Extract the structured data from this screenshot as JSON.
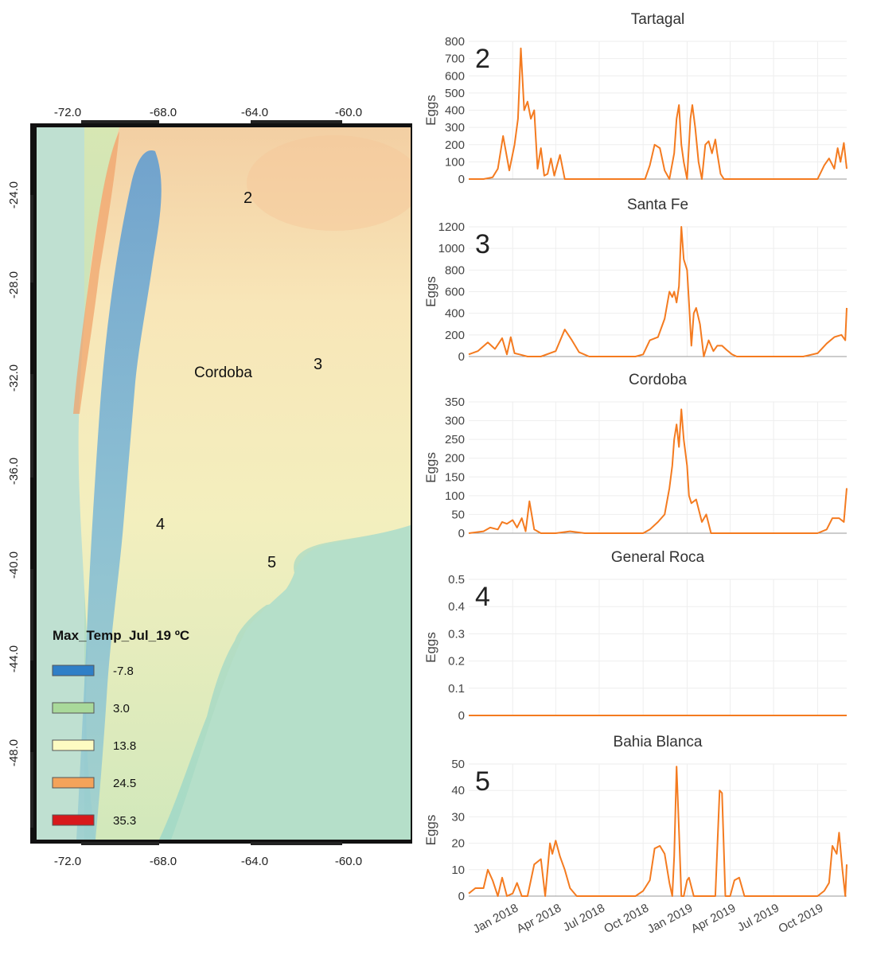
{
  "map": {
    "top_ticks": [
      "-72.0",
      "-68.0",
      "-64.0",
      "-60.0"
    ],
    "bottom_ticks": [
      "-72.0",
      "-68.0",
      "-64.0",
      "-60.0"
    ],
    "lat_ticks": [
      "-24.0",
      "-28.0",
      "-32.0",
      "-36.0",
      "-40.0",
      "-44.0",
      "-48.0"
    ],
    "site_labels": {
      "tartagal": "2",
      "santa_fe": "3",
      "general_roca": "4",
      "bahia_blanca": "5",
      "cordoba": "Cordoba"
    },
    "legend": {
      "title": "Max_Temp_Jul_19 ºC",
      "items": [
        {
          "label": "-7.8",
          "color": "#2f7fc7"
        },
        {
          "label": "3.0",
          "color": "#a9d99a"
        },
        {
          "label": "13.8",
          "color": "#fdfbc2"
        },
        {
          "label": "24.5",
          "color": "#f4a35a"
        },
        {
          "label": "35.3",
          "color": "#d7191c"
        }
      ]
    }
  },
  "chart_data": {
    "type": "line",
    "x_tick_labels": [
      "Jan 2018",
      "Apr 2018",
      "Jul 2018",
      "Oct 2018",
      "Jan 2019",
      "Apr 2019",
      "Jul 2019",
      "Oct 2019"
    ],
    "line_color": "#f47b20",
    "grid": true,
    "panels": [
      {
        "title": "Tartagal",
        "number": "2",
        "ylabel": "Eggs",
        "ylim": [
          0,
          800
        ],
        "yticks": [
          "0",
          "100",
          "200",
          "300",
          "400",
          "500",
          "600",
          "700",
          "800"
        ],
        "x": [
          "2017-10-01",
          "2017-11-01",
          "2017-11-20",
          "2017-12-01",
          "2017-12-12",
          "2017-12-25",
          "2018-01-05",
          "2018-01-12",
          "2018-01-18",
          "2018-01-25",
          "2018-02-01",
          "2018-02-08",
          "2018-02-15",
          "2018-02-22",
          "2018-03-01",
          "2018-03-08",
          "2018-03-15",
          "2018-03-22",
          "2018-03-29",
          "2018-04-10",
          "2018-04-20",
          "2018-05-01",
          "2018-06-01",
          "2018-08-01",
          "2018-09-20",
          "2018-10-05",
          "2018-10-15",
          "2018-10-25",
          "2018-11-05",
          "2018-11-15",
          "2018-11-25",
          "2018-12-05",
          "2018-12-10",
          "2018-12-15",
          "2018-12-20",
          "2018-12-25",
          "2019-01-01",
          "2019-01-08",
          "2019-01-12",
          "2019-01-18",
          "2019-01-25",
          "2019-02-01",
          "2019-02-08",
          "2019-02-15",
          "2019-02-22",
          "2019-03-01",
          "2019-03-05",
          "2019-03-12",
          "2019-03-19",
          "2019-03-26",
          "2019-04-05",
          "2019-04-20",
          "2019-06-01",
          "2019-09-01",
          "2019-10-01",
          "2019-10-15",
          "2019-10-25",
          "2019-11-05",
          "2019-11-12",
          "2019-11-18",
          "2019-11-25",
          "2019-12-01"
        ],
        "values": [
          0,
          0,
          10,
          60,
          250,
          50,
          200,
          350,
          760,
          400,
          450,
          350,
          400,
          60,
          180,
          20,
          30,
          120,
          20,
          140,
          0,
          0,
          0,
          0,
          0,
          0,
          80,
          200,
          180,
          50,
          0,
          150,
          350,
          430,
          200,
          100,
          0,
          350,
          430,
          300,
          100,
          0,
          200,
          220,
          150,
          230,
          150,
          30,
          0,
          0,
          0,
          0,
          0,
          0,
          0,
          80,
          120,
          60,
          180,
          100,
          210,
          60
        ]
      },
      {
        "title": "Santa Fe",
        "number": "3",
        "ylabel": "Eggs",
        "ylim": [
          0,
          1200
        ],
        "yticks": [
          "0",
          "200",
          "400",
          "600",
          "800",
          "1000",
          "1200"
        ],
        "x": [
          "2017-10-01",
          "2017-10-20",
          "2017-11-10",
          "2017-11-25",
          "2017-12-10",
          "2017-12-20",
          "2017-12-28",
          "2018-01-05",
          "2018-01-15",
          "2018-02-01",
          "2018-03-01",
          "2018-04-01",
          "2018-04-20",
          "2018-05-05",
          "2018-05-20",
          "2018-06-10",
          "2018-07-01",
          "2018-09-15",
          "2018-10-01",
          "2018-10-15",
          "2018-11-01",
          "2018-11-15",
          "2018-11-25",
          "2018-12-01",
          "2018-12-05",
          "2018-12-10",
          "2018-12-15",
          "2018-12-20",
          "2018-12-25",
          "2019-01-01",
          "2019-01-05",
          "2019-01-10",
          "2019-01-15",
          "2019-01-20",
          "2019-01-28",
          "2019-02-05",
          "2019-02-15",
          "2019-02-25",
          "2019-03-05",
          "2019-03-15",
          "2019-03-25",
          "2019-04-05",
          "2019-04-15",
          "2019-05-01",
          "2019-05-20",
          "2019-06-10",
          "2019-07-01",
          "2019-09-01",
          "2019-10-01",
          "2019-10-20",
          "2019-11-05",
          "2019-11-20",
          "2019-11-28",
          "2019-12-01"
        ],
        "values": [
          20,
          50,
          130,
          70,
          170,
          20,
          180,
          30,
          20,
          0,
          0,
          50,
          250,
          150,
          40,
          0,
          0,
          0,
          20,
          150,
          180,
          350,
          600,
          550,
          600,
          500,
          650,
          1200,
          900,
          800,
          500,
          100,
          400,
          450,
          300,
          0,
          150,
          50,
          100,
          100,
          60,
          20,
          0,
          0,
          0,
          0,
          0,
          0,
          30,
          120,
          180,
          200,
          150,
          450
        ]
      },
      {
        "title": "Cordoba",
        "number": "",
        "ylabel": "Eggs",
        "ylim": [
          0,
          350
        ],
        "yticks": [
          "0",
          "50",
          "100",
          "150",
          "200",
          "250",
          "300",
          "350"
        ],
        "x": [
          "2017-10-01",
          "2017-11-01",
          "2017-11-15",
          "2017-12-01",
          "2017-12-10",
          "2017-12-20",
          "2018-01-01",
          "2018-01-10",
          "2018-01-20",
          "2018-01-28",
          "2018-02-05",
          "2018-02-15",
          "2018-03-01",
          "2018-04-01",
          "2018-05-01",
          "2018-06-01",
          "2018-08-01",
          "2018-09-15",
          "2018-10-01",
          "2018-10-15",
          "2018-11-01",
          "2018-11-15",
          "2018-11-25",
          "2018-12-01",
          "2018-12-05",
          "2018-12-10",
          "2018-12-15",
          "2018-12-20",
          "2018-12-25",
          "2019-01-01",
          "2019-01-05",
          "2019-01-10",
          "2019-01-20",
          "2019-02-01",
          "2019-02-10",
          "2019-02-20",
          "2019-03-01",
          "2019-04-01",
          "2019-06-01",
          "2019-09-01",
          "2019-10-01",
          "2019-10-20",
          "2019-11-01",
          "2019-11-15",
          "2019-11-25",
          "2019-12-01"
        ],
        "values": [
          0,
          5,
          15,
          10,
          30,
          25,
          35,
          15,
          40,
          5,
          85,
          10,
          0,
          0,
          5,
          0,
          0,
          0,
          0,
          10,
          30,
          50,
          120,
          180,
          250,
          290,
          230,
          330,
          250,
          180,
          100,
          80,
          90,
          30,
          50,
          0,
          0,
          0,
          0,
          0,
          0,
          10,
          40,
          40,
          30,
          120
        ]
      },
      {
        "title": "General Roca",
        "number": "4",
        "ylabel": "Eggs",
        "ylim": [
          0,
          0.5
        ],
        "yticks": [
          "0",
          "0.1",
          "0.2",
          "0.3",
          "0.4",
          "0.5"
        ],
        "x": [
          "2017-10-01",
          "2019-12-01"
        ],
        "values": [
          0,
          0
        ]
      },
      {
        "title": "Bahia Blanca",
        "number": "5",
        "ylabel": "Eggs",
        "ylim": [
          0,
          50
        ],
        "yticks": [
          "0",
          "10",
          "20",
          "30",
          "40",
          "50"
        ],
        "x": [
          "2017-10-01",
          "2017-10-15",
          "2017-11-01",
          "2017-11-10",
          "2017-11-20",
          "2017-12-01",
          "2017-12-10",
          "2017-12-20",
          "2018-01-01",
          "2018-01-10",
          "2018-01-20",
          "2018-02-01",
          "2018-02-15",
          "2018-03-01",
          "2018-03-10",
          "2018-03-20",
          "2018-03-25",
          "2018-04-01",
          "2018-04-10",
          "2018-04-20",
          "2018-05-01",
          "2018-05-15",
          "2018-06-01",
          "2018-08-01",
          "2018-09-15",
          "2018-10-01",
          "2018-10-15",
          "2018-10-25",
          "2018-11-05",
          "2018-11-15",
          "2018-11-25",
          "2018-12-01",
          "2018-12-05",
          "2018-12-10",
          "2018-12-15",
          "2018-12-20",
          "2018-12-25",
          "2019-01-01",
          "2019-01-05",
          "2019-01-15",
          "2019-01-25",
          "2019-02-05",
          "2019-02-15",
          "2019-03-01",
          "2019-03-10",
          "2019-03-15",
          "2019-03-22",
          "2019-04-01",
          "2019-04-10",
          "2019-04-20",
          "2019-05-01",
          "2019-05-15",
          "2019-06-01",
          "2019-09-01",
          "2019-10-01",
          "2019-10-15",
          "2019-10-25",
          "2019-11-01",
          "2019-11-10",
          "2019-11-15",
          "2019-11-22",
          "2019-11-28",
          "2019-12-01"
        ],
        "values": [
          1,
          3,
          3,
          10,
          6,
          0,
          7,
          0,
          1,
          5,
          0,
          0,
          12,
          14,
          0,
          20,
          16,
          21,
          15,
          10,
          3,
          0,
          0,
          0,
          0,
          2,
          6,
          18,
          19,
          16,
          5,
          0,
          15,
          49,
          25,
          0,
          0,
          6,
          7,
          0,
          0,
          0,
          0,
          0,
          40,
          39,
          0,
          0,
          6,
          7,
          0,
          0,
          0,
          0,
          0,
          2,
          5,
          19,
          16,
          24,
          10,
          0,
          12
        ]
      }
    ]
  }
}
